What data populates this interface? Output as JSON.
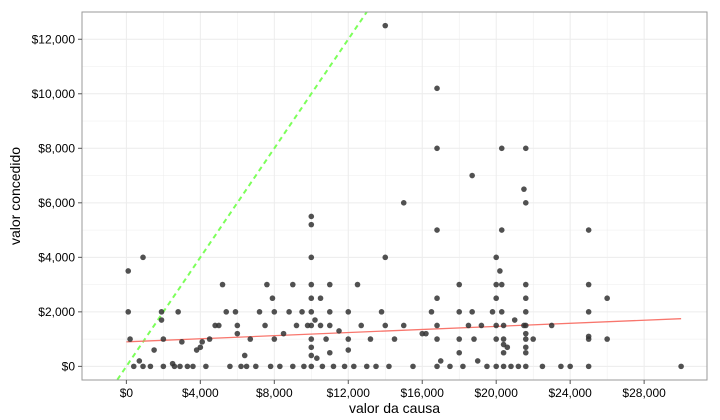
{
  "chart_data": {
    "type": "scatter",
    "xlabel": "valor da causa",
    "ylabel": "valor concedido",
    "xlim": [
      -2400,
      31400
    ],
    "ylim": [
      -500,
      13000
    ],
    "x_ticks": [
      0,
      4000,
      8000,
      12000,
      16000,
      20000,
      24000,
      28000
    ],
    "x_tick_labels": [
      "$0",
      "$4,000",
      "$8,000",
      "$12,000",
      "$16,000",
      "$20,000",
      "$24,000",
      "$28,000"
    ],
    "y_ticks": [
      0,
      2000,
      4000,
      6000,
      8000,
      10000,
      12000
    ],
    "y_tick_labels": [
      "$0",
      "$2,000",
      "$4,000",
      "$6,000",
      "$8,000",
      "$10,000",
      "$12,000"
    ],
    "grid": true,
    "colors": {
      "points": "#333333",
      "regression_line": "#f8766d",
      "identity_line": "#7cff5a",
      "panel_border": "#9a9a9a",
      "grid": "#ececec"
    },
    "reference_lines": [
      {
        "kind": "identity",
        "slope": 1,
        "intercept": 0,
        "style": "dashed"
      },
      {
        "kind": "regression",
        "points": [
          [
            0,
            900
          ],
          [
            30000,
            1750
          ]
        ],
        "style": "solid"
      }
    ],
    "points": [
      [
        100,
        3500
      ],
      [
        100,
        2000
      ],
      [
        200,
        1000
      ],
      [
        400,
        0
      ],
      [
        700,
        200
      ],
      [
        900,
        4000
      ],
      [
        900,
        0
      ],
      [
        1300,
        0
      ],
      [
        1500,
        600
      ],
      [
        1900,
        1700
      ],
      [
        1900,
        2000
      ],
      [
        2000,
        1000
      ],
      [
        2000,
        0
      ],
      [
        2500,
        100
      ],
      [
        2600,
        0
      ],
      [
        2800,
        2000
      ],
      [
        2900,
        0
      ],
      [
        3000,
        900
      ],
      [
        3300,
        0
      ],
      [
        3600,
        0
      ],
      [
        3800,
        600
      ],
      [
        4000,
        700
      ],
      [
        4100,
        900
      ],
      [
        4300,
        0
      ],
      [
        4500,
        1000
      ],
      [
        4800,
        1500
      ],
      [
        5000,
        1500
      ],
      [
        5200,
        3000
      ],
      [
        5400,
        2000
      ],
      [
        5600,
        0
      ],
      [
        5900,
        2000
      ],
      [
        6000,
        1500
      ],
      [
        6000,
        1200
      ],
      [
        6200,
        0
      ],
      [
        6400,
        400
      ],
      [
        6500,
        0
      ],
      [
        6700,
        1000
      ],
      [
        7000,
        0
      ],
      [
        7200,
        2000
      ],
      [
        7500,
        1500
      ],
      [
        7600,
        3000
      ],
      [
        7800,
        0
      ],
      [
        7900,
        2500
      ],
      [
        8000,
        2000
      ],
      [
        8000,
        1000
      ],
      [
        8300,
        0
      ],
      [
        8500,
        1200
      ],
      [
        8800,
        2000
      ],
      [
        9000,
        3000
      ],
      [
        9000,
        0
      ],
      [
        9200,
        1500
      ],
      [
        9500,
        2000
      ],
      [
        9600,
        0
      ],
      [
        9800,
        1500
      ],
      [
        10000,
        5500
      ],
      [
        10000,
        5200
      ],
      [
        10000,
        4000
      ],
      [
        10000,
        3000
      ],
      [
        10000,
        2500
      ],
      [
        10000,
        2000
      ],
      [
        10000,
        1500
      ],
      [
        10000,
        1000
      ],
      [
        10000,
        700
      ],
      [
        10000,
        400
      ],
      [
        10000,
        0
      ],
      [
        10200,
        1700
      ],
      [
        10300,
        300
      ],
      [
        10500,
        2500
      ],
      [
        10500,
        1500
      ],
      [
        10600,
        0
      ],
      [
        10800,
        1000
      ],
      [
        11000,
        3000
      ],
      [
        11000,
        2000
      ],
      [
        11000,
        1500
      ],
      [
        11000,
        500
      ],
      [
        11200,
        0
      ],
      [
        11500,
        1300
      ],
      [
        11800,
        0
      ],
      [
        12000,
        2000
      ],
      [
        12000,
        1000
      ],
      [
        12000,
        600
      ],
      [
        12300,
        0
      ],
      [
        12500,
        3000
      ],
      [
        12700,
        1500
      ],
      [
        13000,
        0
      ],
      [
        13200,
        1000
      ],
      [
        13500,
        0
      ],
      [
        13800,
        2000
      ],
      [
        14000,
        12500
      ],
      [
        14000,
        4000
      ],
      [
        14000,
        1500
      ],
      [
        14200,
        0
      ],
      [
        14500,
        1000
      ],
      [
        15000,
        6000
      ],
      [
        15000,
        1500
      ],
      [
        15500,
        0
      ],
      [
        16000,
        1200
      ],
      [
        16200,
        1200
      ],
      [
        16500,
        2000
      ],
      [
        16800,
        10200
      ],
      [
        16800,
        8000
      ],
      [
        16800,
        5000
      ],
      [
        16800,
        2500
      ],
      [
        16800,
        1500
      ],
      [
        16800,
        1000
      ],
      [
        16800,
        0
      ],
      [
        17000,
        200
      ],
      [
        17500,
        0
      ],
      [
        18000,
        3000
      ],
      [
        18000,
        2000
      ],
      [
        18000,
        1000
      ],
      [
        18000,
        500
      ],
      [
        18200,
        0
      ],
      [
        18500,
        1500
      ],
      [
        18700,
        7000
      ],
      [
        18700,
        2000
      ],
      [
        18800,
        1000
      ],
      [
        19000,
        200
      ],
      [
        19200,
        1500
      ],
      [
        19500,
        0
      ],
      [
        19800,
        2000
      ],
      [
        20000,
        4000
      ],
      [
        20000,
        3000
      ],
      [
        20000,
        2500
      ],
      [
        20000,
        1500
      ],
      [
        20000,
        1000
      ],
      [
        20000,
        0
      ],
      [
        20200,
        3500
      ],
      [
        20300,
        8000
      ],
      [
        20300,
        5000
      ],
      [
        20300,
        3000
      ],
      [
        20300,
        2000
      ],
      [
        20400,
        1500
      ],
      [
        20400,
        1000
      ],
      [
        20400,
        800
      ],
      [
        20400,
        500
      ],
      [
        20400,
        0
      ],
      [
        20600,
        700
      ],
      [
        20800,
        0
      ],
      [
        21000,
        1700
      ],
      [
        21200,
        0
      ],
      [
        21500,
        6500
      ],
      [
        21500,
        1500
      ],
      [
        21600,
        8000
      ],
      [
        21600,
        6000
      ],
      [
        21600,
        3000
      ],
      [
        21600,
        2500
      ],
      [
        21600,
        2000
      ],
      [
        21600,
        1500
      ],
      [
        21600,
        1200
      ],
      [
        21600,
        1000
      ],
      [
        21600,
        700
      ],
      [
        21600,
        500
      ],
      [
        21600,
        0
      ],
      [
        22000,
        1000
      ],
      [
        22500,
        0
      ],
      [
        23000,
        1500
      ],
      [
        23500,
        0
      ],
      [
        24000,
        0
      ],
      [
        25000,
        5000
      ],
      [
        25000,
        3000
      ],
      [
        25000,
        2000
      ],
      [
        25000,
        1100
      ],
      [
        25000,
        1000
      ],
      [
        25000,
        0
      ],
      [
        26000,
        2500
      ],
      [
        26000,
        1000
      ],
      [
        30000,
        0
      ]
    ]
  }
}
